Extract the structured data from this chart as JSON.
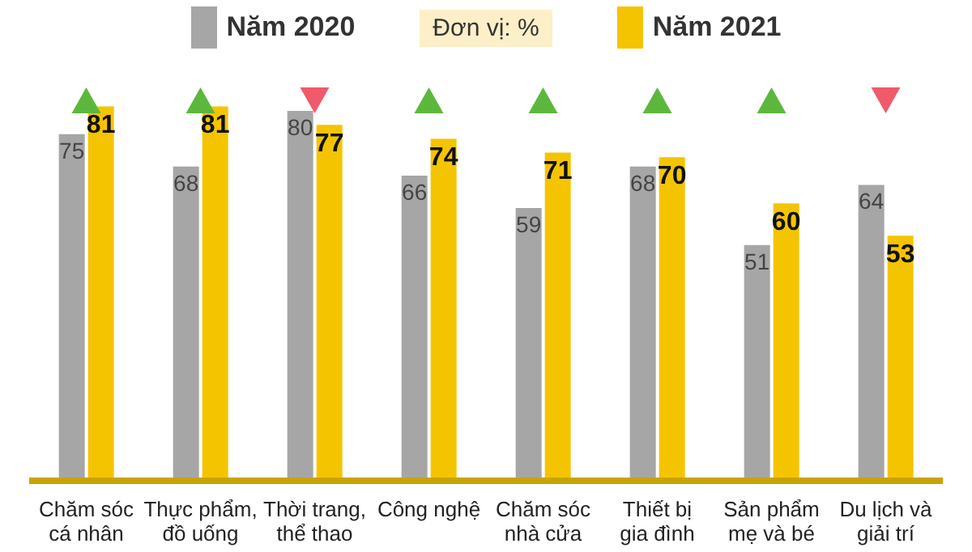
{
  "chart_data": {
    "type": "bar",
    "subtitle": "Đơn vị: %",
    "categories": [
      "Chăm sóc\ncá nhân",
      "Thực phẩm,\nđồ uống",
      "Thời trang,\nthể thao",
      "Công nghệ",
      "Chăm sóc\nnhà cửa",
      "Thiết bị\ngia đình",
      "Sản phẩm\nmẹ và bé",
      "Du lịch và\ngiải trí"
    ],
    "series": [
      {
        "name": "Năm 2020",
        "color": "#a6a6a6",
        "values": [
          75,
          68,
          80,
          66,
          59,
          68,
          51,
          64
        ]
      },
      {
        "name": "Năm 2021",
        "color": "#f5c400",
        "values": [
          81,
          81,
          77,
          74,
          71,
          70,
          60,
          53
        ]
      }
    ],
    "tick_labels": "x",
    "legend": "top",
    "data_labels": true
  }
}
